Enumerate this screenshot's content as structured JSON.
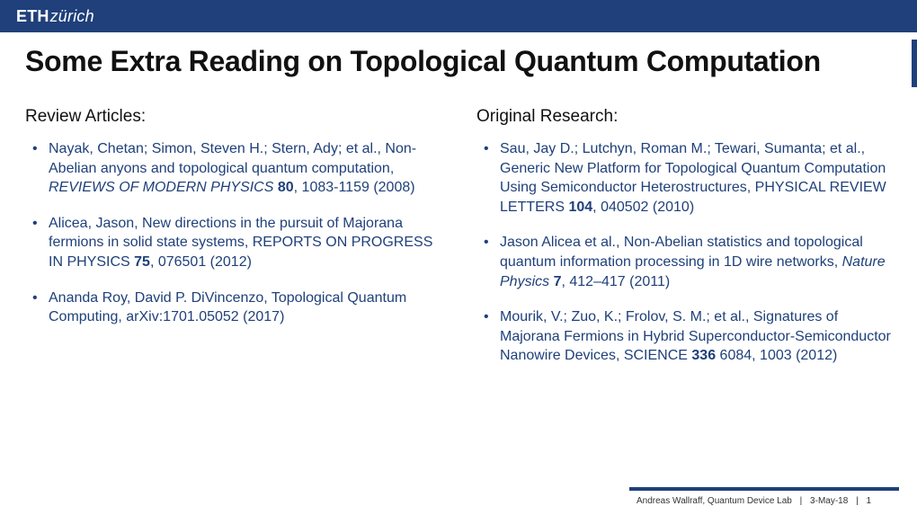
{
  "brand": {
    "bold": "ETH",
    "light": "zürich"
  },
  "title": "Some Extra Reading on Topological Quantum Computation",
  "left": {
    "header": "Review Articles:",
    "items": [
      {
        "pre": "Nayak, Chetan; Simon, Steven H.; Stern, Ady; et al., Non-Abelian anyons and topological quantum computation, ",
        "ital": "REVIEWS OF MODERN PHYSICS  ",
        "bold": "80",
        "post": ", 1083-1159 (2008)"
      },
      {
        "pre": "Alicea, Jason, New directions in the pursuit of Majorana fermions in solid state systems, REPORTS ON PROGRESS IN PHYSICS ",
        "ital": "",
        "bold": "75",
        "post": ", 076501 (2012)"
      },
      {
        "pre": "Ananda Roy, David P. DiVincenzo, Topological Quantum Computing, arXiv:1701.05052 (2017)",
        "ital": "",
        "bold": "",
        "post": ""
      }
    ]
  },
  "right": {
    "header": "Original Research:",
    "items": [
      {
        "pre": "Sau, Jay D.; Lutchyn, Roman M.; Tewari, Sumanta; et al., Generic New Platform for Topological Quantum Computation Using Semiconductor Heterostructures, PHYSICAL REVIEW LETTERS ",
        "ital": "",
        "bold": "104",
        "post": ", 040502 (2010)"
      },
      {
        "pre": "Jason Alicea et al., Non-Abelian statistics and topological quantum information processing in 1D wire networks, ",
        "ital": "Nature Physics ",
        "bold": "7",
        "post": ", 412–417 (2011)"
      },
      {
        "pre": "Mourik, V.; Zuo, K.; Frolov, S. M.; et al., Signatures of Majorana Fermions in Hybrid Superconductor-Semiconductor Nanowire Devices, SCIENCE ",
        "ital": "",
        "bold": "336",
        "post": " 6084, 1003 (2012)"
      }
    ]
  },
  "footer": {
    "author": "Andreas Wallraff, Quantum Device Lab",
    "date": "3-May-18",
    "page": "1"
  },
  "colors": {
    "brand_bg": "#1f407a",
    "text_main": "#111111",
    "ref_text": "#1f407a",
    "bg": "#ffffff"
  }
}
